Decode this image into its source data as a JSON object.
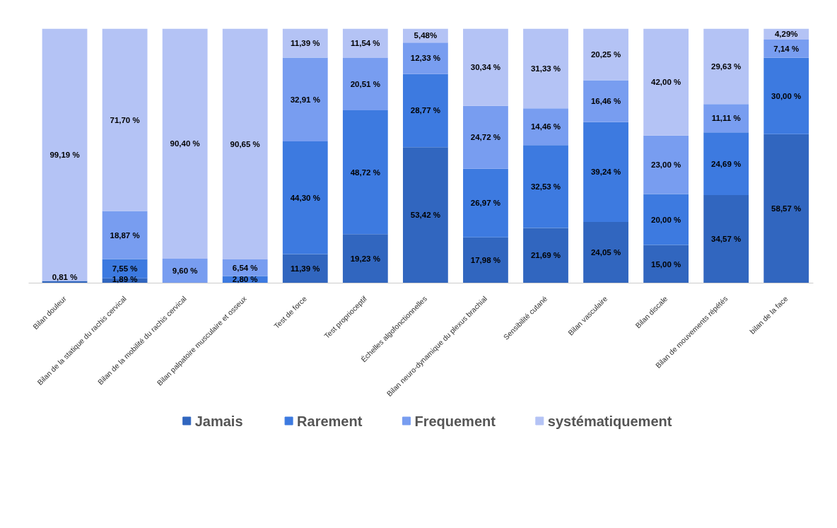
{
  "chart_data": {
    "type": "bar",
    "stacked": true,
    "categories": [
      "Bilan douleur",
      "Bilan de la statique du rachis cervical",
      "Bilan de la mobilité du rachis cervical",
      "Bilan palpatoire musculaire et osseux",
      "Test de force",
      "Test proprioceptif",
      "Échelles algofonctionnelles",
      "Bilan neuro-dynamique du plexus brachial",
      "Sensibilité cutané",
      "Bilan vasculaire",
      "Bilan discale",
      "Bilan de mouvements répétés",
      "bilan de la face"
    ],
    "series": [
      {
        "name": "Jamais",
        "color": "#3166bf",
        "values": [
          0.81,
          1.89,
          0,
          0,
          11.39,
          19.23,
          53.42,
          17.98,
          21.69,
          24.05,
          15.0,
          34.57,
          58.57
        ],
        "value_labels": [
          "0,81 %",
          "1,89 %",
          null,
          null,
          "11,39 %",
          "19,23 %",
          "53,42 %",
          "17,98 %",
          "21,69 %",
          "24,05 %",
          "15,00 %",
          "34,57 %",
          "58,57 %"
        ]
      },
      {
        "name": "Rarement",
        "color": "#3d7ae0",
        "values": [
          0,
          7.55,
          0,
          2.8,
          44.3,
          48.72,
          28.77,
          26.97,
          32.53,
          39.24,
          20.0,
          24.69,
          30.0
        ],
        "value_labels": [
          null,
          "7,55 %",
          null,
          "2,80 %",
          "44,30 %",
          "48,72 %",
          "28,77 %",
          "26,97 %",
          "32,53 %",
          "39,24 %",
          "20,00 %",
          "24,69 %",
          "30,00 %"
        ]
      },
      {
        "name": "Frequement",
        "color": "#789df0",
        "values": [
          0,
          18.87,
          9.6,
          6.54,
          32.91,
          20.51,
          12.33,
          24.72,
          14.46,
          16.46,
          23.0,
          11.11,
          7.14
        ],
        "value_labels": [
          null,
          "18,87 %",
          "9,60 %",
          "6,54 %",
          "32,91 %",
          "20,51 %",
          "12,33 %",
          "24,72 %",
          "14,46 %",
          "16,46 %",
          "23,00 %",
          "11,11 %",
          "7,14 %"
        ]
      },
      {
        "name": "systématiquement",
        "color": "#b4c3f5",
        "values": [
          99.19,
          71.7,
          90.4,
          90.65,
          11.39,
          11.54,
          5.48,
          30.34,
          31.33,
          20.25,
          42.0,
          29.63,
          4.29
        ],
        "value_labels": [
          "99,19 %",
          "71,70 %",
          "90,40 %",
          "90,65 %",
          "11,39 %",
          "11,54 %",
          "5,48%",
          "30,34 %",
          "31,33 %",
          "20,25 %",
          "42,00 %",
          "29,63 %",
          "4,29%"
        ]
      }
    ],
    "legend": "bottom"
  }
}
